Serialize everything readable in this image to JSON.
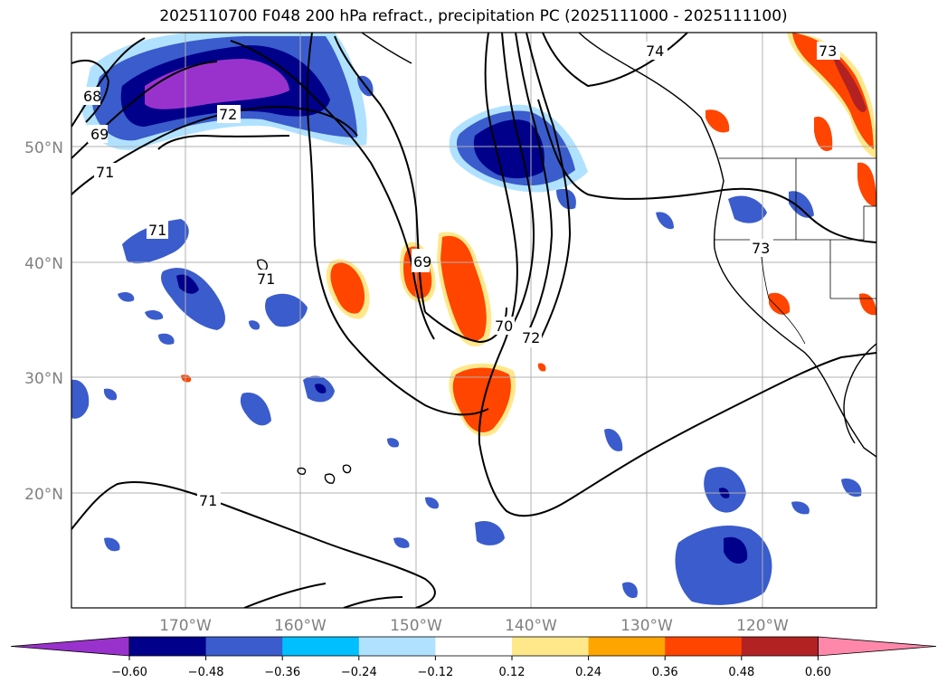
{
  "title": "2025110700 F048 200 hPa refract., precipitation PC (2025111000 - 2025111100)",
  "latitude_labels": [
    "50°N",
    "40°N",
    "30°N",
    "20°N"
  ],
  "longitude_labels": [
    "170°W",
    "160°W",
    "150°W",
    "140°W",
    "130°W",
    "120°W"
  ],
  "contour_labels": [
    "68",
    "69",
    "71",
    "71",
    "71",
    "69",
    "70",
    "72",
    "74",
    "73",
    "73",
    "71",
    "72"
  ],
  "colorbar": {
    "ticks": [
      "−0.60",
      "−0.48",
      "−0.36",
      "−0.24",
      "−0.12",
      "0.12",
      "0.24",
      "0.36",
      "0.48",
      "0.60"
    ],
    "colors": [
      "#9932cc",
      "#00008b",
      "#3a5ccc",
      "#00bfff",
      "#b0e2ff",
      "#ffffff",
      "#ffe88a",
      "#ffa500",
      "#ff4500",
      "#b22222",
      "#ff88aa"
    ]
  },
  "colors": {
    "neg_strong": "#9932cc",
    "neg_dark": "#00008b",
    "neg_mid": "#3a5ccc",
    "neg_light": "#00bfff",
    "neg_pale": "#b0e2ff",
    "pos_pale": "#ffe88a",
    "pos_light": "#ffa500",
    "pos_mid": "#ff4500",
    "pos_dark": "#b22222",
    "pos_strong": "#ff88aa"
  }
}
